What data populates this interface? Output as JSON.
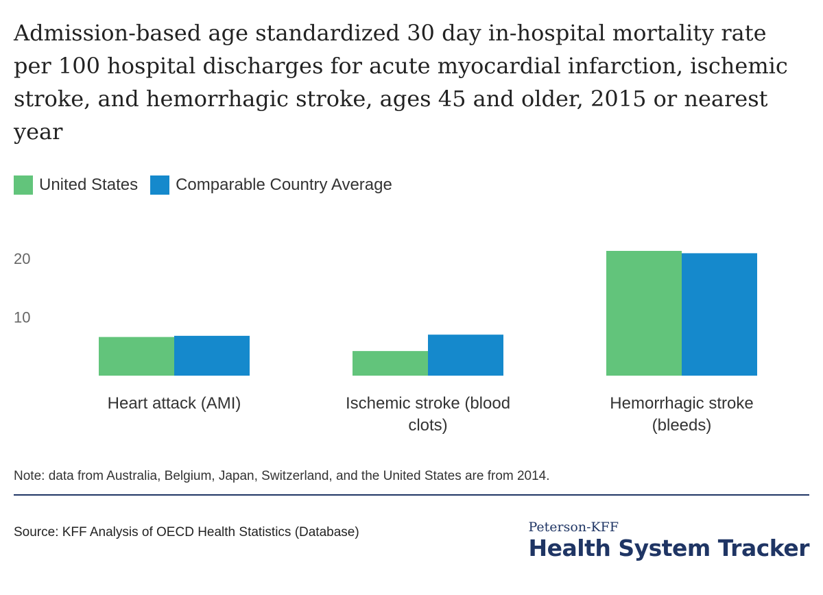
{
  "chart_data": {
    "type": "bar",
    "title": "Admission-based age standardized 30 day in-hospital mortality rate per 100 hospital discharges for acute myocardial infarction, ischemic stroke, and hemorrhagic stroke, ages 45 and older, 2015 or nearest year",
    "categories": [
      "Heart attack (AMI)",
      "Ischemic stroke (blood clots)",
      "Hemorrhagic stroke (bleeds)"
    ],
    "category_lines": [
      [
        "Heart attack (AMI)"
      ],
      [
        "Ischemic stroke (blood",
        "clots)"
      ],
      [
        "Hemorrhagic stroke",
        "(bleeds)"
      ]
    ],
    "series": [
      {
        "name": "United States",
        "color": "#62c47b",
        "values": [
          6.6,
          4.2,
          21.3
        ]
      },
      {
        "name": "Comparable Country Average",
        "color": "#1589cc",
        "values": [
          6.8,
          7.0,
          20.9
        ]
      }
    ],
    "yticks": [
      10,
      20
    ],
    "ylim": [
      0,
      21.3
    ],
    "grid": false,
    "legend_position": "top-left",
    "xlabel": "",
    "ylabel": ""
  },
  "note": "Note: data from Australia, Belgium, Japan, Switzerland, and the United States are from 2014.",
  "source": "Source: KFF Analysis of OECD Health Statistics (Database)",
  "brand": {
    "sub": "Peterson-KFF",
    "main": "Health System Tracker"
  }
}
